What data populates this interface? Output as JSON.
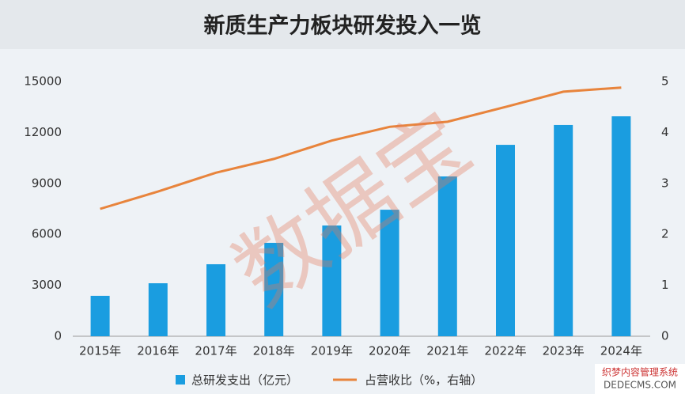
{
  "chart_data": {
    "type": "bar_line",
    "title": "新质生产力板块研发投入一览",
    "categories": [
      "2015年",
      "2016年",
      "2017年",
      "2018年",
      "2019年",
      "2020年",
      "2021年",
      "2022年",
      "2023年",
      "2024年"
    ],
    "series": [
      {
        "name": "总研发支出（亿元）",
        "type": "bar",
        "color": "#1a9de0",
        "values": [
          2380,
          3120,
          4240,
          5500,
          6520,
          7450,
          9410,
          11270,
          12440,
          12950
        ]
      },
      {
        "name": "占营收比（%，右轴）",
        "type": "line",
        "axis": "y2",
        "color": "#e8843c",
        "values": [
          2.5,
          2.84,
          3.21,
          3.48,
          3.84,
          4.11,
          4.21,
          4.5,
          4.8,
          4.88
        ]
      }
    ],
    "ylim": [
      0,
      15000
    ],
    "yticks": [
      0,
      3000,
      6000,
      9000,
      12000,
      15000
    ],
    "y2lim": [
      0,
      5
    ],
    "y2ticks": [
      0,
      1,
      2,
      3,
      4,
      5
    ],
    "grid": false,
    "watermark": "数据宝",
    "corner_text": [
      "织梦内容管理系统",
      "DEDECMS.COM"
    ]
  }
}
